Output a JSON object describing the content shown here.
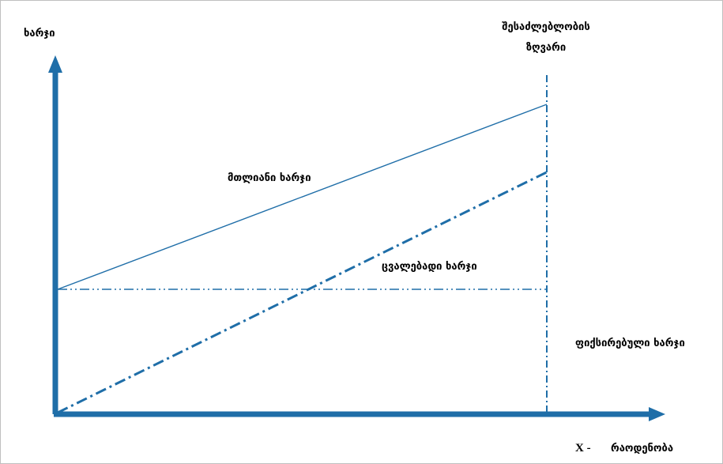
{
  "chart_data": {
    "type": "line",
    "ylabel": "ხარჯი",
    "xlabel_var": "X -",
    "xlabel": "რაოდენობა",
    "capacity_limit_label": [
      "შესაძლებლობის",
      "ზღვარი"
    ],
    "series": [
      {
        "name": "მთლიანი ხარჯი",
        "style": "solid",
        "values": [
          {
            "x": 0,
            "y": 40
          },
          {
            "x": 100,
            "y": 100
          }
        ]
      },
      {
        "name": "ცვალებადი ხარჯი",
        "style": "dash-dot",
        "values": [
          {
            "x": 0,
            "y": 0
          },
          {
            "x": 100,
            "y": 78
          }
        ]
      },
      {
        "name": "ფიქსირებული ხარჯი",
        "style": "dash-dot-dot",
        "values": [
          {
            "x": 0,
            "y": 40
          },
          {
            "x": 100,
            "y": 40
          }
        ]
      }
    ],
    "xlim": [
      0,
      100
    ],
    "ylim": [
      0,
      100
    ],
    "grid": false,
    "colors": {
      "axis": "#1f6ea8",
      "series": "#1f6ea8"
    }
  }
}
